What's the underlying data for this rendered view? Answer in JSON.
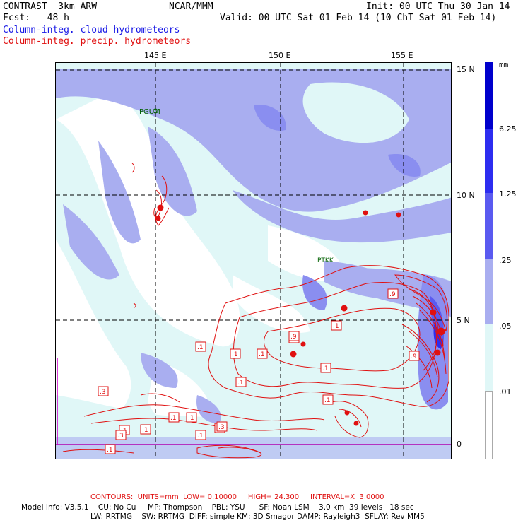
{
  "header": {
    "model": "CONTRAST  3km ARW",
    "org": "NCAR/MMM",
    "init": "Init: 00 UTC Thu 30 Jan 14",
    "fcst": "Fcst:   48 h",
    "valid": "Valid: 00 UTC Sat 01 Feb 14 (10 ChT Sat 01 Feb 14)",
    "field1": "Column-integ. cloud hydrometeors",
    "field2": "Column-integ. precip. hydrometeors"
  },
  "map": {
    "lon_labels": [
      "145 E",
      "150 E",
      "155 E"
    ],
    "lat_labels": [
      "15 N",
      "10 N",
      "5 N",
      "0"
    ],
    "stations": [
      "PGUM",
      "PTKK"
    ],
    "contour_labels": [
      ".1",
      ".3",
      ".9",
      ".1",
      ".1",
      ".9",
      ".1",
      ".1",
      ".9",
      ".1",
      ".1",
      ".1",
      ".1",
      ".1",
      ".1",
      ".1",
      ".3",
      ".3",
      ".1",
      ".9",
      ".1"
    ],
    "colors": {
      "light": "#e0f7f7",
      "l2": "#a9aef0",
      "l3": "#8a8ef0",
      "l4": "#5a5af0",
      "l5": "#2d2df0",
      "l6": "#0000cc",
      "contour": "#e01010"
    }
  },
  "colorbar": {
    "unit": "mm",
    "levels": [
      "6.25",
      "1.25",
      ".25",
      ".05",
      ".01"
    ]
  },
  "footer": {
    "contours": "CONTOURS:  UNITS=mm  LOW= 0.10000     HIGH= 24.300     INTERVAL=X  3.0000",
    "info1": "Model Info: V3.5.1    CU: No Cu     MP: Thompson    PBL: YSU      SF: Noah LSM    3.0 km  39 levels   18 sec",
    "info2": "LW: RRTMG    SW: RRTMG  DIFF: simple KM: 3D Smagor DAMP: Rayleigh3  SFLAY: Rev MM5"
  }
}
